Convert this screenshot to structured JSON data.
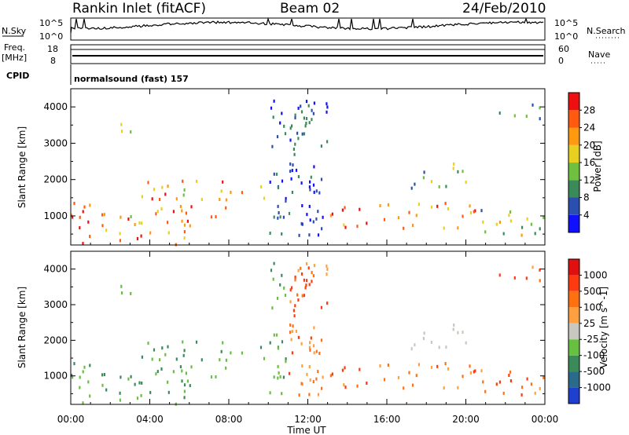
{
  "header": {
    "station": "Rankin Inlet (fitACF)",
    "beam": "Beam 02",
    "date": "24/Feb/2010"
  },
  "strip": {
    "nsky_label": "N.Sky",
    "nsearch_label": "N.Search",
    "nsky_ticks": [
      "10^5",
      "10^0"
    ],
    "nsearch_ticks": [
      "10^5",
      "10^0"
    ],
    "freq_label": "Freq.",
    "freq_unit": "[MHz]",
    "freq_ticks": [
      "18",
      "8"
    ],
    "nave_label": "Nave",
    "nave_ticks": [
      "60",
      "0"
    ],
    "cpid_label": "CPID",
    "cpid_text": "normalsound (fast) 157"
  },
  "chart_data": [
    {
      "type": "heatmap",
      "ylabel": "Slant Range [km]",
      "xlabel": "Time UT",
      "x_ticks": [
        "00:00",
        "04:00",
        "08:00",
        "12:00",
        "16:00",
        "20:00",
        "00:00"
      ],
      "y_ticks": [
        "1000",
        "2000",
        "3000",
        "4000"
      ],
      "ylim": [
        200,
        4500
      ],
      "colorbar": {
        "label": "Power [dB]",
        "ticks": [
          "4",
          "8",
          "12",
          "16",
          "20",
          "24",
          "28"
        ],
        "colors": [
          "#1010ff",
          "#2a4fb0",
          "#3a8a5a",
          "#70c040",
          "#e8d020",
          "#ff9a10",
          "#ff5a10",
          "#ee1010"
        ]
      }
    },
    {
      "type": "heatmap",
      "ylabel": "Slant Range [km]",
      "xlabel": "Time UT",
      "x_ticks": [
        "00:00",
        "04:00",
        "08:00",
        "12:00",
        "16:00",
        "20:00",
        "00:00"
      ],
      "y_ticks": [
        "1000",
        "2000",
        "3000",
        "4000"
      ],
      "ylim": [
        200,
        4500
      ],
      "colorbar": {
        "label": "Velocity [m s^-1]",
        "ticks": [
          "1000",
          "500",
          "100",
          "25",
          "-25",
          "-100",
          "-500",
          "-1000"
        ],
        "colors": [
          "#1f3fcf",
          "#2a6a8a",
          "#3a8a5a",
          "#68c040",
          "#c8c8c0",
          "#ffa040",
          "#ff7010",
          "#ff3a10",
          "#e01010"
        ]
      }
    }
  ]
}
